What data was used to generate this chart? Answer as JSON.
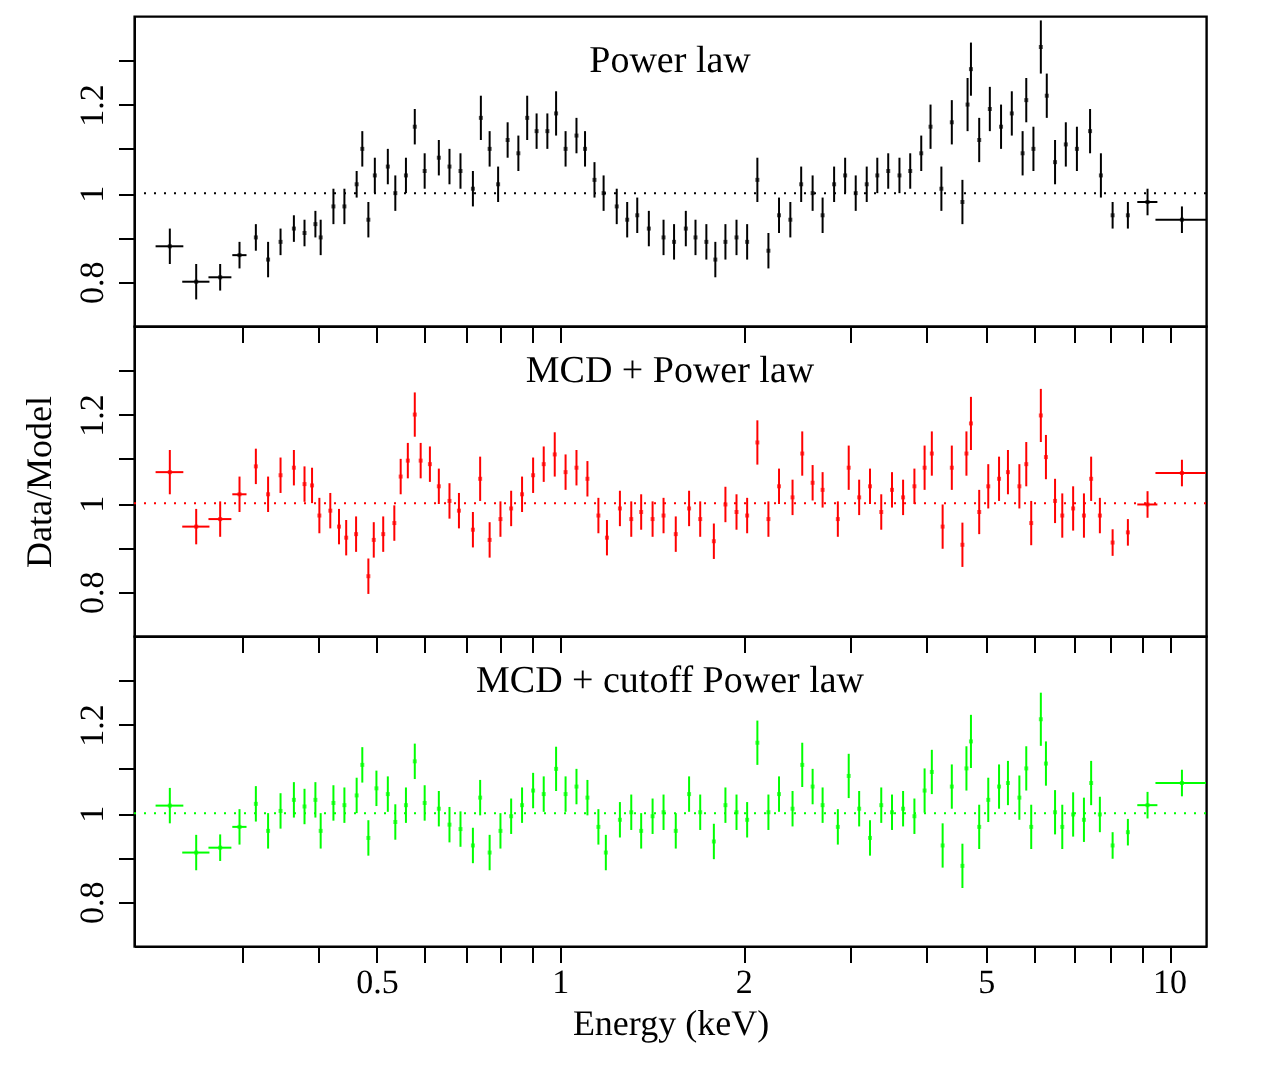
{
  "chart_data": [
    {
      "type": "scatter",
      "title": "Power law",
      "log": "x",
      "xlim": [
        0.2,
        11.5
      ],
      "ylim": [
        0.7,
        1.4
      ],
      "xticks": [
        0.3,
        0.4,
        0.5,
        0.6,
        0.7,
        0.8,
        0.9,
        1,
        2,
        3,
        4,
        5,
        6,
        7,
        8,
        9,
        10
      ],
      "yticks": [
        0.8,
        {
          "value": 0.9,
          "label": null
        },
        1,
        {
          "value": 1.1,
          "label": null
        },
        1.2,
        {
          "value": 1.3,
          "label": null
        }
      ],
      "tick_labels": "y",
      "ref_lines": [
        {
          "axis": "y",
          "value": 1,
          "line_style": "dotted",
          "color": "#000000"
        }
      ],
      "series": [
        {
          "color": "#000000",
          "x": [
            0.229,
            0.253,
            0.277,
            0.298,
            0.317,
            0.332,
            0.348,
            0.366,
            0.381,
            0.397,
            0.405,
            0.425,
            0.443,
            0.464,
            0.474,
            0.485,
            0.497,
            0.522,
            0.537,
            0.559,
            0.578,
            0.6,
            0.633,
            0.659,
            0.687,
            0.72,
            0.742,
            0.767,
            0.792,
            0.821,
            0.855,
            0.884,
            0.916,
            0.954,
            0.986,
            1.022,
            1.065,
            1.1,
            1.14,
            1.18,
            1.24,
            1.29,
            1.34,
            1.4,
            1.48,
            1.54,
            1.61,
            1.67,
            1.74,
            1.8,
            1.87,
            1.95,
            2.03,
            2.11,
            2.2,
            2.29,
            2.39,
            2.49,
            2.6,
            2.7,
            2.82,
            2.94,
            3.06,
            3.19,
            3.32,
            3.46,
            3.61,
            3.76,
            3.92,
            4.06,
            4.23,
            4.4,
            4.58,
            4.67,
            4.73,
            4.88,
            5.08,
            5.3,
            5.52,
            5.75,
            5.83,
            5.99,
            6.16,
            6.3,
            6.5,
            6.77,
            7.06,
            7.42,
            7.73,
            8.08,
            8.56,
            9.22,
            10.5
          ],
          "values": [
            0.88,
            0.8,
            0.81,
            0.86,
            0.9,
            0.85,
            0.89,
            0.92,
            0.91,
            0.93,
            0.9,
            0.97,
            0.97,
            1.02,
            1.1,
            0.94,
            1.04,
            1.06,
            1,
            1.04,
            1.15,
            1.05,
            1.08,
            1.06,
            1.05,
            1.01,
            1.17,
            1.1,
            1.02,
            1.12,
            1.09,
            1.17,
            1.14,
            1.14,
            1.18,
            1.1,
            1.13,
            1.1,
            1.03,
            1,
            0.97,
            0.94,
            0.95,
            0.92,
            0.9,
            0.89,
            0.92,
            0.9,
            0.89,
            0.85,
            0.89,
            0.9,
            0.89,
            1.03,
            0.87,
            0.95,
            0.94,
            1.02,
            1,
            0.95,
            1.02,
            1.04,
            1,
            1.02,
            1.04,
            1.05,
            1.04,
            1.05,
            1.09,
            1.15,
            1.01,
            1.16,
            0.98,
            1.2,
            1.28,
            1.12,
            1.19,
            1.15,
            1.18,
            1.09,
            1.21,
            1.1,
            1.33,
            1.22,
            1.07,
            1.11,
            1.1,
            1.14,
            1.04,
            0.95,
            0.95,
            0.98,
            0.94
          ],
          "errors": [
            0.04,
            0.04,
            0.03,
            0.03,
            0.03,
            0.04,
            0.03,
            0.03,
            0.03,
            0.03,
            0.04,
            0.04,
            0.04,
            0.03,
            0.04,
            0.04,
            0.04,
            0.04,
            0.04,
            0.04,
            0.04,
            0.04,
            0.04,
            0.04,
            0.04,
            0.04,
            0.05,
            0.04,
            0.04,
            0.04,
            0.04,
            0.05,
            0.04,
            0.04,
            0.05,
            0.04,
            0.04,
            0.04,
            0.04,
            0.04,
            0.04,
            0.04,
            0.04,
            0.04,
            0.04,
            0.04,
            0.04,
            0.04,
            0.04,
            0.04,
            0.04,
            0.04,
            0.04,
            0.05,
            0.04,
            0.04,
            0.04,
            0.04,
            0.04,
            0.04,
            0.04,
            0.04,
            0.04,
            0.04,
            0.04,
            0.04,
            0.04,
            0.04,
            0.04,
            0.05,
            0.05,
            0.05,
            0.05,
            0.06,
            0.06,
            0.05,
            0.05,
            0.05,
            0.05,
            0.05,
            0.05,
            0.05,
            0.06,
            0.05,
            0.05,
            0.05,
            0.05,
            0.05,
            0.05,
            0.03,
            0.03,
            0.03,
            0.03
          ],
          "xerrors": [
            0.012,
            0.013,
            0.012,
            0.008,
            null,
            null,
            null,
            null,
            null,
            null,
            null,
            null,
            null,
            null,
            null,
            null,
            null,
            null,
            null,
            null,
            null,
            null,
            null,
            null,
            null,
            null,
            null,
            null,
            null,
            null,
            null,
            null,
            null,
            null,
            null,
            null,
            null,
            null,
            null,
            null,
            null,
            null,
            null,
            null,
            null,
            null,
            null,
            null,
            null,
            null,
            null,
            null,
            null,
            null,
            null,
            null,
            null,
            null,
            null,
            null,
            null,
            null,
            null,
            null,
            null,
            null,
            null,
            null,
            null,
            null,
            null,
            null,
            null,
            null,
            null,
            null,
            null,
            null,
            null,
            null,
            null,
            null,
            null,
            null,
            null,
            null,
            null,
            null,
            null,
            null,
            null,
            0.35,
            1.0
          ]
        }
      ]
    },
    {
      "type": "scatter",
      "title": "MCD + Power law",
      "ylabel": "Data/Model",
      "log": "x",
      "xlim": [
        0.2,
        11.5
      ],
      "ylim": [
        0.7,
        1.4
      ],
      "xticks": [
        0.3,
        0.4,
        0.5,
        0.6,
        0.7,
        0.8,
        0.9,
        1,
        2,
        3,
        4,
        5,
        6,
        7,
        8,
        9,
        10
      ],
      "yticks": [
        0.8,
        {
          "value": 0.9,
          "label": null
        },
        1,
        {
          "value": 1.1,
          "label": null
        },
        1.2,
        {
          "value": 1.3,
          "label": null
        }
      ],
      "tick_labels": "y",
      "ref_lines": [
        {
          "axis": "y",
          "value": 1,
          "line_style": "dotted",
          "color": "#ff0000"
        }
      ],
      "series": [
        {
          "color": "#ff0000",
          "x": [
            0.229,
            0.253,
            0.277,
            0.298,
            0.317,
            0.332,
            0.348,
            0.366,
            0.381,
            0.392,
            0.403,
            0.42,
            0.434,
            0.446,
            0.463,
            0.485,
            0.495,
            0.513,
            0.535,
            0.548,
            0.563,
            0.578,
            0.591,
            0.612,
            0.633,
            0.659,
            0.683,
            0.72,
            0.74,
            0.767,
            0.799,
            0.832,
            0.867,
            0.904,
            0.941,
            0.981,
            1.022,
            1.065,
            1.11,
            1.157,
            1.195,
            1.255,
            1.31,
            1.36,
            1.42,
            1.48,
            1.55,
            1.63,
            1.7,
            1.79,
            1.87,
            1.95,
            2.03,
            2.11,
            2.2,
            2.29,
            2.41,
            2.5,
            2.6,
            2.7,
            2.86,
            2.98,
            3.1,
            3.23,
            3.37,
            3.51,
            3.66,
            3.82,
            3.97,
            4.08,
            4.25,
            4.4,
            4.58,
            4.65,
            4.73,
            4.88,
            5.05,
            5.26,
            5.44,
            5.68,
            5.83,
            5.94,
            6.16,
            6.28,
            6.5,
            6.68,
            6.96,
            7.25,
            7.45,
            7.7,
            8.08,
            8.56,
            9.22,
            10.5
          ],
          "values": [
            1.07,
            0.947,
            0.964,
            1.02,
            1.083,
            1.02,
            1.063,
            1.08,
            1.043,
            1.04,
            0.972,
            0.983,
            0.947,
            0.922,
            0.93,
            0.835,
            0.917,
            0.93,
            0.955,
            1.06,
            1.096,
            1.2,
            1.096,
            1.088,
            1.038,
            1.005,
            0.983,
            0.94,
            1.055,
            0.917,
            0.964,
            0.988,
            1.02,
            1.063,
            1.088,
            1.11,
            1.07,
            1.08,
            1.055,
            0.972,
            0.922,
            0.988,
            0.964,
            0.98,
            0.964,
            0.972,
            0.93,
            0.988,
            0.964,
            0.914,
            0.997,
            0.98,
            0.972,
            1.137,
            0.964,
            1.038,
            1.013,
            1.112,
            1.046,
            1.03,
            0.964,
            1.08,
            1.013,
            1.038,
            0.98,
            1.03,
            1.013,
            1.038,
            1.08,
            1.112,
            0.947,
            1.08,
            0.906,
            1.112,
            1.18,
            0.98,
            1.038,
            1.055,
            1.07,
            1.038,
            1.088,
            0.955,
            1.198,
            1.104,
            1.005,
            0.972,
            0.988,
            0.972,
            1.055,
            0.972,
            0.911,
            0.934,
            0.997,
            1.068
          ],
          "errors": [
            0.05,
            0.04,
            0.04,
            0.04,
            0.04,
            0.04,
            0.04,
            0.04,
            0.04,
            0.04,
            0.04,
            0.04,
            0.04,
            0.04,
            0.04,
            0.04,
            0.04,
            0.04,
            0.04,
            0.04,
            0.04,
            0.05,
            0.04,
            0.04,
            0.04,
            0.04,
            0.04,
            0.04,
            0.05,
            0.04,
            0.04,
            0.04,
            0.04,
            0.04,
            0.04,
            0.05,
            0.04,
            0.04,
            0.04,
            0.04,
            0.04,
            0.04,
            0.04,
            0.04,
            0.04,
            0.04,
            0.04,
            0.04,
            0.04,
            0.04,
            0.04,
            0.04,
            0.04,
            0.05,
            0.04,
            0.04,
            0.04,
            0.05,
            0.04,
            0.04,
            0.04,
            0.05,
            0.04,
            0.04,
            0.04,
            0.04,
            0.04,
            0.04,
            0.05,
            0.05,
            0.05,
            0.05,
            0.05,
            0.05,
            0.06,
            0.05,
            0.05,
            0.05,
            0.05,
            0.05,
            0.05,
            0.05,
            0.06,
            0.05,
            0.05,
            0.05,
            0.05,
            0.05,
            0.05,
            0.04,
            0.03,
            0.03,
            0.03,
            0.03
          ],
          "xerrors": [
            0.012,
            0.013,
            0.012,
            0.008,
            null,
            null,
            null,
            null,
            null,
            null,
            null,
            null,
            null,
            null,
            null,
            null,
            null,
            null,
            null,
            null,
            null,
            null,
            null,
            null,
            null,
            null,
            null,
            null,
            null,
            null,
            null,
            null,
            null,
            null,
            null,
            null,
            null,
            null,
            null,
            null,
            null,
            null,
            null,
            null,
            null,
            null,
            null,
            null,
            null,
            null,
            null,
            null,
            null,
            null,
            null,
            null,
            null,
            null,
            null,
            null,
            null,
            null,
            null,
            null,
            null,
            null,
            null,
            null,
            null,
            null,
            null,
            null,
            null,
            null,
            null,
            null,
            null,
            null,
            null,
            null,
            null,
            null,
            null,
            null,
            null,
            null,
            null,
            null,
            null,
            null,
            null,
            null,
            0.35,
            1.0
          ]
        }
      ]
    },
    {
      "type": "scatter",
      "title": "MCD + cutoff Power law",
      "xlabel": "Energy (keV)",
      "log": "x",
      "xlim": [
        0.2,
        11.5
      ],
      "ylim": [
        0.7,
        1.4
      ],
      "xticks": [
        {
          "value": 0.3,
          "label": null
        },
        {
          "value": 0.4,
          "label": null
        },
        {
          "value": 0.5,
          "label": "0.5"
        },
        {
          "value": 0.6,
          "label": null
        },
        {
          "value": 0.7,
          "label": null
        },
        {
          "value": 0.8,
          "label": null
        },
        {
          "value": 0.9,
          "label": null
        },
        {
          "value": 1,
          "label": "1"
        },
        {
          "value": 2,
          "label": "2"
        },
        {
          "value": 3,
          "label": null
        },
        {
          "value": 4,
          "label": null
        },
        {
          "value": 5,
          "label": "5"
        },
        {
          "value": 6,
          "label": null
        },
        {
          "value": 7,
          "label": null
        },
        {
          "value": 8,
          "label": null
        },
        {
          "value": 9,
          "label": null
        },
        {
          "value": 10,
          "label": "10"
        }
      ],
      "yticks": [
        0.8,
        {
          "value": 0.9,
          "label": null
        },
        1,
        {
          "value": 1.1,
          "label": null
        },
        1.2,
        {
          "value": 1.3,
          "label": null
        }
      ],
      "ref_lines": [
        {
          "axis": "y",
          "value": 1,
          "line_style": "dotted",
          "color": "#00ff00"
        }
      ],
      "series": [
        {
          "color": "#00ff00",
          "x": [
            0.229,
            0.253,
            0.277,
            0.298,
            0.317,
            0.332,
            0.348,
            0.366,
            0.381,
            0.397,
            0.405,
            0.425,
            0.443,
            0.464,
            0.474,
            0.485,
            0.5,
            0.522,
            0.537,
            0.559,
            0.578,
            0.6,
            0.633,
            0.659,
            0.687,
            0.72,
            0.74,
            0.767,
            0.799,
            0.832,
            0.867,
            0.904,
            0.941,
            0.986,
            1.022,
            1.065,
            1.11,
            1.157,
            1.19,
            1.255,
            1.31,
            1.36,
            1.42,
            1.48,
            1.55,
            1.63,
            1.7,
            1.79,
            1.87,
            1.95,
            2.03,
            2.11,
            2.2,
            2.29,
            2.41,
            2.5,
            2.6,
            2.7,
            2.86,
            2.98,
            3.1,
            3.23,
            3.37,
            3.51,
            3.66,
            3.82,
            3.97,
            4.08,
            4.25,
            4.4,
            4.58,
            4.65,
            4.73,
            4.88,
            5.05,
            5.26,
            5.44,
            5.68,
            5.83,
            5.94,
            6.16,
            6.28,
            6.5,
            6.68,
            6.96,
            7.25,
            7.45,
            7.7,
            8.08,
            8.56,
            9.22,
            10.5
          ],
          "values": [
            1.017,
            0.911,
            0.922,
            0.969,
            1.021,
            0.96,
            1.005,
            1.03,
            1.015,
            1.03,
            0.96,
            1.023,
            1.018,
            1.04,
            1.109,
            0.944,
            1.056,
            1.043,
            0.98,
            1.018,
            1.117,
            1.023,
            1.01,
            0.974,
            0.964,
            0.927,
            1.035,
            0.911,
            0.96,
            0.993,
            1.018,
            1.051,
            1.043,
            1.1,
            1.043,
            1.06,
            1.035,
            0.969,
            0.911,
            0.985,
            1.002,
            0.96,
            0.993,
            1.002,
            0.96,
            1.043,
            1.002,
            0.936,
            1.018,
            1.002,
            0.985,
            1.159,
            1.002,
            1.043,
            1.01,
            1.109,
            1.06,
            1.018,
            0.969,
            1.084,
            1.01,
            0.944,
            1.018,
            1.002,
            1.01,
            0.993,
            1.051,
            1.093,
            0.927,
            1.06,
            0.881,
            1.101,
            1.162,
            0.969,
            1.03,
            1.06,
            1.068,
            1.035,
            1.101,
            0.969,
            1.212,
            1.112,
            1.002,
            0.969,
            0.997,
            0.985,
            1.068,
            0.997,
            0.927,
            0.957,
            1.018,
            1.068
          ],
          "errors": [
            0.04,
            0.04,
            0.03,
            0.04,
            0.04,
            0.04,
            0.04,
            0.04,
            0.04,
            0.04,
            0.04,
            0.04,
            0.04,
            0.04,
            0.04,
            0.04,
            0.04,
            0.04,
            0.04,
            0.04,
            0.04,
            0.04,
            0.04,
            0.04,
            0.04,
            0.04,
            0.04,
            0.04,
            0.04,
            0.04,
            0.04,
            0.04,
            0.04,
            0.05,
            0.04,
            0.04,
            0.04,
            0.04,
            0.04,
            0.04,
            0.04,
            0.04,
            0.04,
            0.04,
            0.04,
            0.04,
            0.04,
            0.04,
            0.04,
            0.04,
            0.04,
            0.05,
            0.04,
            0.04,
            0.04,
            0.05,
            0.04,
            0.04,
            0.04,
            0.05,
            0.04,
            0.04,
            0.04,
            0.04,
            0.04,
            0.04,
            0.05,
            0.05,
            0.05,
            0.05,
            0.05,
            0.05,
            0.06,
            0.05,
            0.05,
            0.05,
            0.05,
            0.05,
            0.05,
            0.05,
            0.06,
            0.05,
            0.05,
            0.05,
            0.05,
            0.05,
            0.05,
            0.04,
            0.03,
            0.03,
            0.03,
            0.03
          ],
          "xerrors": [
            0.012,
            0.013,
            0.012,
            0.008,
            null,
            null,
            null,
            null,
            null,
            null,
            null,
            null,
            null,
            null,
            null,
            null,
            null,
            null,
            null,
            null,
            null,
            null,
            null,
            null,
            null,
            null,
            null,
            null,
            null,
            null,
            null,
            null,
            null,
            null,
            null,
            null,
            null,
            null,
            null,
            null,
            null,
            null,
            null,
            null,
            null,
            null,
            null,
            null,
            null,
            null,
            null,
            null,
            null,
            null,
            null,
            null,
            null,
            null,
            null,
            null,
            null,
            null,
            null,
            null,
            null,
            null,
            null,
            null,
            null,
            null,
            null,
            null,
            null,
            null,
            null,
            null,
            null,
            null,
            null,
            null,
            null,
            null,
            null,
            null,
            null,
            null,
            null,
            null,
            null,
            null,
            0.35,
            1.0
          ]
        }
      ]
    }
  ]
}
